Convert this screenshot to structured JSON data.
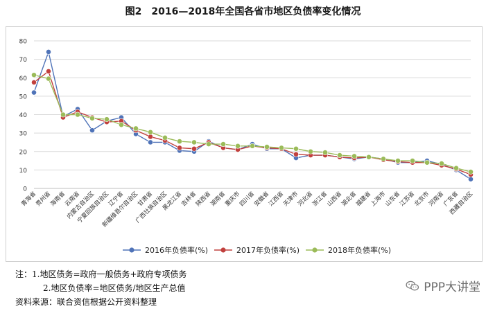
{
  "title": "图2　2016—2018年全国各省市地区负债率变化情况",
  "notes": {
    "line1": "注：1.地区债务=政府一般债务+政府专项债务",
    "line2": "2.地区负债率=地区债务/地区生产总值",
    "line3": "资料来源：联合资信根据公开资料整理"
  },
  "watermark": "PPP大讲堂",
  "colors": {
    "s2016": "#4f73b8",
    "s2017": "#c1403d",
    "s2018": "#9bbb59",
    "grid": "#d9d9d9",
    "axis": "#bfbfbf"
  },
  "chart_data": {
    "type": "line",
    "title": "图2　2016—2018年全国各省市地区负债率变化情况",
    "xlabel": "",
    "ylabel": "",
    "ylim": [
      0,
      80
    ],
    "yticks": [
      0,
      10,
      20,
      30,
      40,
      50,
      60,
      70,
      80
    ],
    "grid": true,
    "legend": "bottom",
    "categories": [
      "青海省",
      "贵州省",
      "海南省",
      "云南省",
      "内蒙古自治区",
      "宁夏回族自治区",
      "辽宁省",
      "新疆维吾尔自治区",
      "甘肃省",
      "广西壮族自治区",
      "黑龙江省",
      "吉林省",
      "陕西省",
      "湖南省",
      "重庆市",
      "四川省",
      "安徽省",
      "江西省",
      "天津市",
      "河北省",
      "浙江省",
      "山西省",
      "湖北省",
      "福建省",
      "上海市",
      "山东省",
      "江苏省",
      "北京市",
      "河南省",
      "广东省",
      "西藏自治区"
    ],
    "series": [
      {
        "name": "2016年负债率(%)",
        "values": [
          52,
          74,
          39,
          43,
          31.5,
          36.5,
          38.5,
          29.5,
          25,
          25,
          20.5,
          20,
          25.5,
          22,
          21,
          24,
          21.5,
          21.5,
          16.5,
          18,
          18,
          17,
          16,
          17,
          16,
          14,
          14,
          15,
          13,
          10,
          5
        ]
      },
      {
        "name": "2017年负债率(%)",
        "values": [
          57.5,
          63.5,
          38.5,
          41.5,
          38.5,
          36,
          36.5,
          31.5,
          28,
          26,
          22,
          21.5,
          25,
          22,
          21,
          23,
          22,
          21.5,
          18.5,
          18,
          18,
          17,
          16.5,
          17,
          15.5,
          14.5,
          14,
          14,
          12.5,
          10.5,
          7.5
        ]
      },
      {
        "name": "2018年负债率(%)",
        "values": [
          61.5,
          59.5,
          40,
          40,
          38,
          37.5,
          34.5,
          32.5,
          30.5,
          27.5,
          25.5,
          25,
          24,
          24,
          23,
          23,
          22.5,
          22,
          21.5,
          20,
          19.5,
          18,
          17.5,
          17,
          16,
          15,
          15,
          14,
          13.5,
          11,
          9
        ]
      }
    ]
  }
}
